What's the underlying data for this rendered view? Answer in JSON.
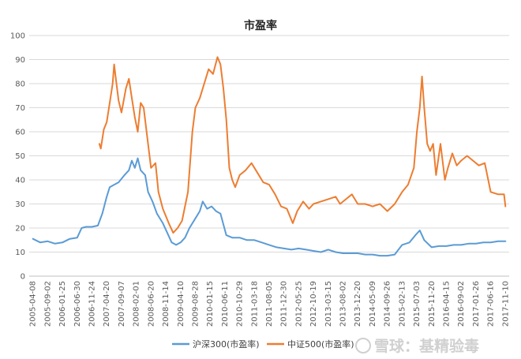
{
  "chart_data": {
    "type": "line",
    "title": "市盈率",
    "xlabel": "",
    "ylabel": "",
    "ylim": [
      0,
      100
    ],
    "yticks": [
      0,
      10,
      20,
      30,
      40,
      50,
      60,
      70,
      80,
      90,
      100
    ],
    "grid": true,
    "legend_position": "bottom",
    "x_tick_labels": [
      "2005-04-08",
      "2005-09-02",
      "2006-01-25",
      "2006-06-30",
      "2006-11-24",
      "2007-04-20",
      "2007-09-07",
      "2008-02-01",
      "2008-06-20",
      "2008-11-14",
      "2009-04-10",
      "2009-08-28",
      "2010-01-15",
      "2010-06-11",
      "2010-10-29",
      "2011-03-18",
      "2011-08-05",
      "2011-12-30",
      "2012-05-25",
      "2012-10-19",
      "2013-03-15",
      "2013-08-02",
      "2013-12-20",
      "2014-05-09",
      "2014-09-26",
      "2015-02-13",
      "2015-07-03",
      "2015-11-20",
      "2016-04-15",
      "2016-09-02",
      "2017-01-26",
      "2017-06-16",
      "2017-11-10"
    ],
    "series": [
      {
        "name": "沪深300(市盈率)",
        "color": "#5b9bd5",
        "points": [
          [
            0,
            15.5
          ],
          [
            0.5,
            14
          ],
          [
            1,
            14.5
          ],
          [
            1.5,
            13.5
          ],
          [
            2,
            14
          ],
          [
            2.5,
            15.5
          ],
          [
            3,
            16
          ],
          [
            3.3,
            20
          ],
          [
            3.6,
            20.5
          ],
          [
            4,
            20.5
          ],
          [
            4.4,
            21
          ],
          [
            4.7,
            26
          ],
          [
            5,
            33
          ],
          [
            5.2,
            37
          ],
          [
            5.5,
            38
          ],
          [
            5.8,
            39
          ],
          [
            6.2,
            42
          ],
          [
            6.5,
            44
          ],
          [
            6.7,
            48
          ],
          [
            6.9,
            45
          ],
          [
            7.1,
            49
          ],
          [
            7.3,
            44
          ],
          [
            7.6,
            42
          ],
          [
            7.8,
            35
          ],
          [
            8.1,
            31
          ],
          [
            8.4,
            26
          ],
          [
            8.8,
            22
          ],
          [
            9.1,
            18
          ],
          [
            9.4,
            14
          ],
          [
            9.7,
            13
          ],
          [
            10,
            14
          ],
          [
            10.3,
            16
          ],
          [
            10.6,
            20
          ],
          [
            11,
            24
          ],
          [
            11.3,
            27
          ],
          [
            11.5,
            31
          ],
          [
            11.8,
            28
          ],
          [
            12.1,
            29
          ],
          [
            12.4,
            27
          ],
          [
            12.7,
            26
          ],
          [
            13.1,
            17
          ],
          [
            13.5,
            16
          ],
          [
            14,
            16
          ],
          [
            14.5,
            15
          ],
          [
            15,
            15
          ],
          [
            15.5,
            14
          ],
          [
            16,
            13
          ],
          [
            16.5,
            12
          ],
          [
            17,
            11.5
          ],
          [
            17.5,
            11
          ],
          [
            18,
            11.5
          ],
          [
            18.5,
            11
          ],
          [
            19,
            10.5
          ],
          [
            19.5,
            10
          ],
          [
            20,
            11
          ],
          [
            20.5,
            10
          ],
          [
            21,
            9.5
          ],
          [
            21.5,
            9.5
          ],
          [
            22,
            9.5
          ],
          [
            22.5,
            9
          ],
          [
            23,
            9
          ],
          [
            23.5,
            8.5
          ],
          [
            24,
            8.5
          ],
          [
            24.5,
            9
          ],
          [
            25,
            13
          ],
          [
            25.5,
            14
          ],
          [
            25.9,
            17
          ],
          [
            26.2,
            19
          ],
          [
            26.5,
            15
          ],
          [
            27,
            12
          ],
          [
            27.5,
            12.5
          ],
          [
            28,
            12.5
          ],
          [
            28.5,
            13
          ],
          [
            29,
            13
          ],
          [
            29.5,
            13.5
          ],
          [
            30,
            13.5
          ],
          [
            30.5,
            14
          ],
          [
            31,
            14
          ],
          [
            31.5,
            14.5
          ],
          [
            32,
            14.5
          ]
        ]
      },
      {
        "name": "中证500(市盈率)",
        "color": "#ed7d31",
        "points": [
          [
            4.5,
            55
          ],
          [
            4.6,
            53
          ],
          [
            4.8,
            61
          ],
          [
            5,
            64
          ],
          [
            5.2,
            72
          ],
          [
            5.4,
            80
          ],
          [
            5.5,
            88
          ],
          [
            5.6,
            83
          ],
          [
            5.8,
            73
          ],
          [
            6,
            68
          ],
          [
            6.3,
            78
          ],
          [
            6.5,
            82
          ],
          [
            6.7,
            74
          ],
          [
            6.9,
            66
          ],
          [
            7.1,
            60
          ],
          [
            7.3,
            72
          ],
          [
            7.5,
            70
          ],
          [
            7.7,
            60
          ],
          [
            8,
            45
          ],
          [
            8.3,
            47
          ],
          [
            8.5,
            35
          ],
          [
            8.8,
            28
          ],
          [
            9.2,
            22
          ],
          [
            9.5,
            18
          ],
          [
            9.8,
            20
          ],
          [
            10.1,
            23
          ],
          [
            10.5,
            35
          ],
          [
            10.8,
            60
          ],
          [
            11,
            70
          ],
          [
            11.3,
            74
          ],
          [
            11.6,
            80
          ],
          [
            11.9,
            86
          ],
          [
            12.2,
            84
          ],
          [
            12.5,
            91
          ],
          [
            12.7,
            88
          ],
          [
            12.9,
            78
          ],
          [
            13.1,
            65
          ],
          [
            13.3,
            45
          ],
          [
            13.5,
            40
          ],
          [
            13.7,
            37
          ],
          [
            14,
            42
          ],
          [
            14.4,
            44
          ],
          [
            14.8,
            47
          ],
          [
            15.2,
            43
          ],
          [
            15.6,
            39
          ],
          [
            16,
            38
          ],
          [
            16.4,
            34
          ],
          [
            16.8,
            29
          ],
          [
            17.2,
            28
          ],
          [
            17.6,
            22
          ],
          [
            17.9,
            27
          ],
          [
            18.3,
            31
          ],
          [
            18.7,
            28
          ],
          [
            19,
            30
          ],
          [
            19.5,
            31
          ],
          [
            20,
            32
          ],
          [
            20.5,
            33
          ],
          [
            20.8,
            30
          ],
          [
            21.2,
            32
          ],
          [
            21.6,
            34
          ],
          [
            22,
            30
          ],
          [
            22.5,
            30
          ],
          [
            23,
            29
          ],
          [
            23.5,
            30
          ],
          [
            24,
            27
          ],
          [
            24.5,
            30
          ],
          [
            25,
            35
          ],
          [
            25.4,
            38
          ],
          [
            25.8,
            45
          ],
          [
            26,
            60
          ],
          [
            26.2,
            70
          ],
          [
            26.35,
            83
          ],
          [
            26.5,
            70
          ],
          [
            26.7,
            55
          ],
          [
            26.9,
            52
          ],
          [
            27.1,
            55
          ],
          [
            27.3,
            42
          ],
          [
            27.6,
            55
          ],
          [
            27.9,
            40
          ],
          [
            28.1,
            45
          ],
          [
            28.4,
            51
          ],
          [
            28.7,
            46
          ],
          [
            29,
            48
          ],
          [
            29.4,
            50
          ],
          [
            29.8,
            48
          ],
          [
            30.2,
            46
          ],
          [
            30.6,
            47
          ],
          [
            31,
            35
          ],
          [
            31.5,
            34
          ],
          [
            31.9,
            34
          ],
          [
            32,
            29
          ]
        ]
      }
    ]
  },
  "watermark": "雪球：基精验毒"
}
